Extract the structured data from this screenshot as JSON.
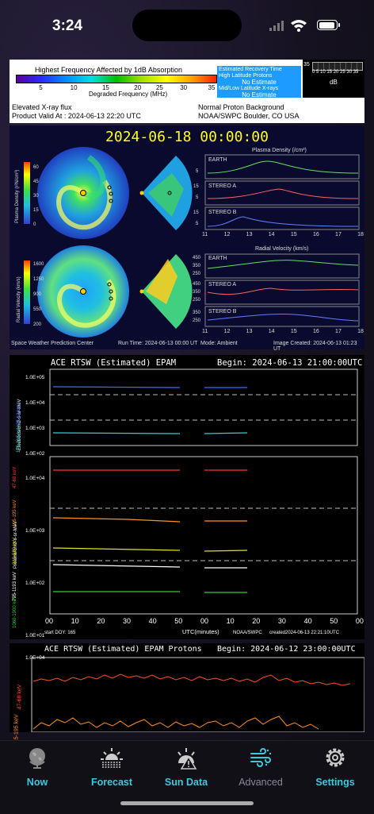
{
  "status": {
    "time": "3:24"
  },
  "panel1": {
    "title": "Highest Frequency Affected by 1dB Absorption",
    "ticks": [
      "5",
      "10",
      "15",
      "20",
      "25",
      "30",
      "35"
    ],
    "axis_label": "Degraded Frequency (MHz)",
    "recovery_title": "Estimated Recovery Time",
    "hl_label": "High Latitude Protons",
    "hl_value": "No Estimate",
    "ml_label": "Mid/Low Latitude X-rays",
    "ml_value": "No Estimate",
    "db_scale_left": "35",
    "db_scale_right": "0 5 10 15 20 25 30 35",
    "db_unit": "dB",
    "xray": "Elevated X-ray flux",
    "valid": "Product Valid At : 2024-06-13 22:20 UTC",
    "proton": "Normal Proton Background",
    "source": "NOAA/SWPC Boulder, CO USA"
  },
  "panel2": {
    "timestamp": "2024-06-18  00:00:00",
    "density_title": "Plasma Density (/cm³)",
    "velocity_title": "Radial Velocity (km/s)",
    "density_cb_label": "Plasma Density (r²N/cm³)",
    "velocity_cb_label": "Radial Velocity (km/s)",
    "density_cb_ticks": [
      "60",
      "45",
      "30",
      "15",
      "0"
    ],
    "velocity_cb_ticks": [
      "1600",
      "1250",
      "900",
      "550",
      "200"
    ],
    "series": [
      "EARTH",
      "STEREO A",
      "STEREO B"
    ],
    "dens_yticks": [
      "15",
      "5"
    ],
    "vel_yticks_top": [
      "450",
      "350",
      "250"
    ],
    "vel_yticks_mid": [
      "450",
      "350",
      "250"
    ],
    "vel_yticks_bot": [
      "350",
      "250"
    ],
    "xticks": [
      "11",
      "12",
      "13",
      "14",
      "15",
      "16",
      "17",
      "18"
    ],
    "footer_left": "Space Weather Prediction Center",
    "footer_run": "Run Time: 2024-06-13 00:00 UT",
    "footer_mode": "Mode: Ambient",
    "footer_created": "Image Created: 2024-06-13 01:23 UT"
  },
  "panel3": {
    "title": "ACE RTSW (Estimated) EPAM",
    "begin": "Begin: 2024-06-13 21:00:00UTC",
    "e_yticks": [
      "1.0E+05",
      "1.0E+04",
      "1.0E+03",
      "1.0E+02"
    ],
    "p_yticks": [
      "1.0E+04",
      "1.0E+03",
      "1.0E+02",
      "1.0E+01"
    ],
    "e_axis": "Electrons/cm2-s-sr-MeV",
    "e_ch1": "38-53 keV",
    "e_ch2": "175-315 keV",
    "p_axis": "Protons/cm2-s-sr-MeV",
    "p_ch1": "47-68 keV",
    "p_ch2": "115-195 keV",
    "p_ch3": "310-580 keV",
    "p_ch4": "795-1193 keV",
    "p_ch5": "1060-1900 keV",
    "xticks": [
      "00",
      "10",
      "20",
      "30",
      "40",
      "50",
      "00",
      "10",
      "20",
      "30",
      "40",
      "50",
      "00"
    ],
    "xlabel": "UTC(minutes)",
    "start": "start DOY:  165",
    "org": "NOAA/SWPC",
    "created": "created2024-06-13 22:21:10UTC"
  },
  "panel4": {
    "title": "ACE RTSW (Estimated) EPAM Protons",
    "begin": "Begin: 2024-06-12 23:00:00UTC",
    "ytick": "1.0E+04",
    "ch1": "47-68 keV",
    "ch2": "115-195 keV"
  },
  "tabs": [
    {
      "label": "Now",
      "active": true
    },
    {
      "label": "Forecast",
      "active": true
    },
    {
      "label": "Sun Data",
      "active": true
    },
    {
      "label": "Advanced",
      "active": false
    },
    {
      "label": "Settings",
      "active": true
    }
  ],
  "colors": {
    "accent": "#3fc7de",
    "inactive": "#8a8a95"
  }
}
